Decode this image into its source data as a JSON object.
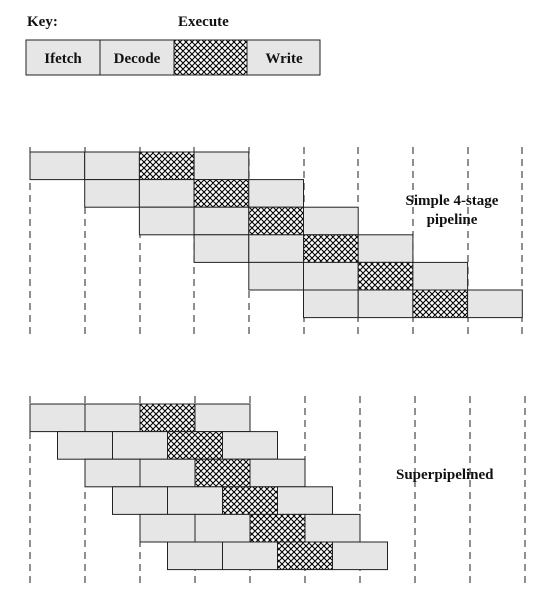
{
  "key": {
    "title": "Key:",
    "stages": [
      "Ifetch",
      "Decode",
      "Execute",
      "Write"
    ]
  },
  "simple": {
    "label_line1": "Simple 4-stage",
    "label_line2": "pipeline"
  },
  "super": {
    "label": "Superpipelined"
  },
  "colors": {
    "stage_fill": "#e6e6e6",
    "outline": "#222222",
    "hatch": "#000000"
  },
  "icons": [
    "crosshatch-pattern"
  ]
}
